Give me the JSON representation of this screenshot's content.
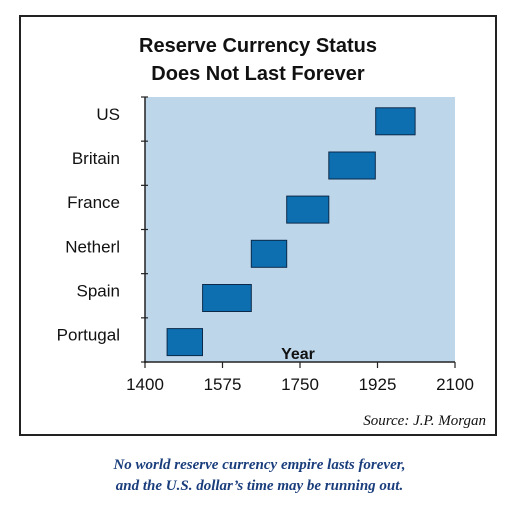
{
  "chart_data": {
    "type": "bar",
    "orientation": "horizontal-timeline",
    "title": [
      "Reserve Currency Status",
      "Does Not Last Forever"
    ],
    "xlabel": "Year",
    "ylabel": "",
    "xlim": [
      1400,
      2100
    ],
    "xticks": [
      "1400",
      "1575",
      "1750",
      "1925",
      "2100"
    ],
    "categories": [
      "US",
      "Britain",
      "France",
      "Netherl",
      "Spain",
      "Portugal"
    ],
    "series": [
      {
        "values": [
          {
            "start": 1921,
            "end": 2010
          },
          {
            "start": 1815,
            "end": 1920
          },
          {
            "start": 1720,
            "end": 1815
          },
          {
            "start": 1640,
            "end": 1720
          },
          {
            "start": 1530,
            "end": 1640
          },
          {
            "start": 1450,
            "end": 1530
          }
        ]
      }
    ],
    "source": "Source: J.P. Morgan",
    "grid": false,
    "colors": {
      "plot_bg": "#bed6ea",
      "bar_fill": "#0d6fb0",
      "bar_edge": "#0b2a4a",
      "axis": "#222222"
    }
  },
  "caption": {
    "line1": "No world reserve currency empire lasts forever,",
    "line2": "and the U.S. dollar’s time may be running out."
  }
}
